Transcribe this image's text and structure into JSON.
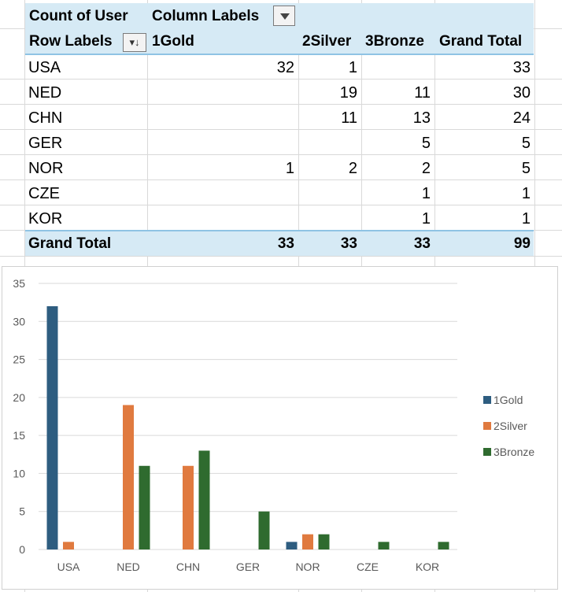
{
  "pivot": {
    "count_label": "Count of User",
    "column_labels": "Column Labels",
    "row_labels": "Row Labels",
    "columns": [
      "1Gold",
      "2Silver",
      "3Bronze"
    ],
    "grand_total_label": "Grand Total",
    "sort_indicator": "▾↓",
    "rows": [
      {
        "label": "USA",
        "gold": "32",
        "silver": "1",
        "bronze": "",
        "total": "33"
      },
      {
        "label": "NED",
        "gold": "",
        "silver": "19",
        "bronze": "11",
        "total": "30"
      },
      {
        "label": "CHN",
        "gold": "",
        "silver": "11",
        "bronze": "13",
        "total": "24"
      },
      {
        "label": "GER",
        "gold": "",
        "silver": "",
        "bronze": "5",
        "total": "5"
      },
      {
        "label": "NOR",
        "gold": "1",
        "silver": "2",
        "bronze": "2",
        "total": "5"
      },
      {
        "label": "CZE",
        "gold": "",
        "silver": "",
        "bronze": "1",
        "total": "1"
      },
      {
        "label": "KOR",
        "gold": "",
        "silver": "",
        "bronze": "1",
        "total": "1"
      }
    ],
    "totals": {
      "label": "Grand Total",
      "gold": "33",
      "silver": "33",
      "bronze": "33",
      "total": "99"
    }
  },
  "colors": {
    "header_fill": "#d6eaf5",
    "gold": "#2e5d80",
    "silver": "#e07a3f",
    "bronze": "#2f6b2f",
    "gridline": "#d9d9d9"
  },
  "chart_data": {
    "type": "bar",
    "title": "",
    "xlabel": "",
    "ylabel": "",
    "categories": [
      "USA",
      "NED",
      "CHN",
      "GER",
      "NOR",
      "CZE",
      "KOR"
    ],
    "series": [
      {
        "name": "1Gold",
        "values": [
          32,
          0,
          0,
          0,
          1,
          0,
          0
        ],
        "color": "#2e5d80"
      },
      {
        "name": "2Silver",
        "values": [
          1,
          19,
          11,
          0,
          2,
          0,
          0
        ],
        "color": "#e07a3f"
      },
      {
        "name": "3Bronze",
        "values": [
          0,
          11,
          13,
          5,
          2,
          1,
          1
        ],
        "color": "#2f6b2f"
      }
    ],
    "ylim": [
      0,
      35
    ],
    "yticks": [
      0,
      5,
      10,
      15,
      20,
      25,
      30,
      35
    ],
    "grid": true,
    "legend": "right"
  }
}
